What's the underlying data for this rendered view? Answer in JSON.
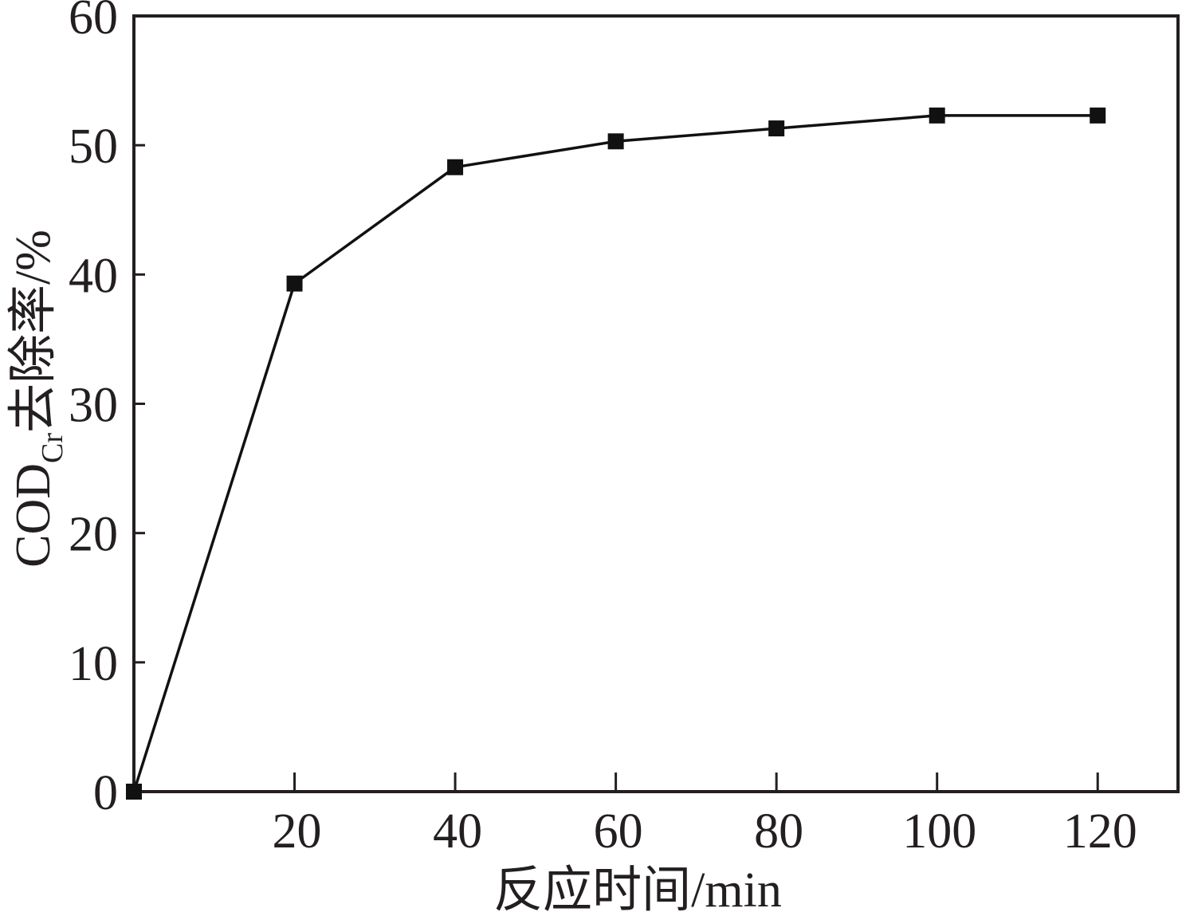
{
  "chart_data": {
    "type": "line",
    "title": "",
    "xlabel": "反应时间/min",
    "ylabel": {
      "main": "COD",
      "subscript": "Cr",
      "suffix": "去除率/%"
    },
    "x": [
      0,
      20,
      40,
      60,
      80,
      100,
      120
    ],
    "series": [
      {
        "values": [
          0,
          39.3,
          48.3,
          50.3,
          51.3,
          52.3,
          52.3
        ],
        "marker": "square",
        "color": "#111111"
      }
    ],
    "xlim": [
      0,
      130
    ],
    "ylim": [
      0,
      60
    ],
    "xticks": [
      20,
      40,
      60,
      80,
      100,
      120
    ],
    "xtick_labels": [
      "20",
      "40",
      "60",
      "80",
      "100",
      "120"
    ],
    "yticks": [
      0,
      10,
      20,
      30,
      40,
      50,
      60
    ],
    "ytick_labels": [
      "0",
      "10",
      "20",
      "30",
      "40",
      "50",
      "60"
    ],
    "grid": false,
    "legend": "none"
  }
}
